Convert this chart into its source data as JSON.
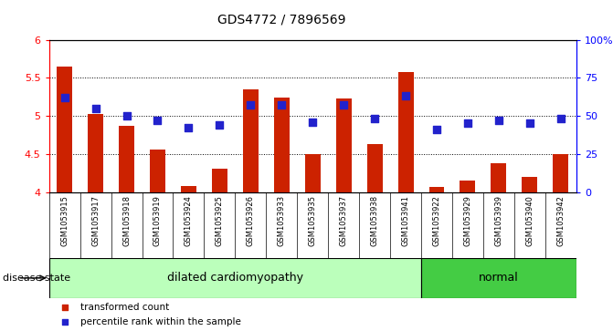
{
  "title": "GDS4772 / 7896569",
  "samples": [
    "GSM1053915",
    "GSM1053917",
    "GSM1053918",
    "GSM1053919",
    "GSM1053924",
    "GSM1053925",
    "GSM1053926",
    "GSM1053933",
    "GSM1053935",
    "GSM1053937",
    "GSM1053938",
    "GSM1053941",
    "GSM1053922",
    "GSM1053929",
    "GSM1053939",
    "GSM1053940",
    "GSM1053942"
  ],
  "bar_values": [
    5.65,
    5.02,
    4.87,
    4.56,
    4.08,
    4.3,
    5.35,
    5.24,
    4.5,
    5.23,
    4.63,
    5.57,
    4.07,
    4.15,
    4.38,
    4.2,
    4.5
  ],
  "dot_values": [
    62,
    55,
    50,
    47,
    42,
    44,
    57,
    57,
    46,
    57,
    48,
    63,
    41,
    45,
    47,
    45,
    48
  ],
  "bar_color": "#cc2200",
  "dot_color": "#2222cc",
  "ylim_left": [
    4.0,
    6.0
  ],
  "ylim_right": [
    0,
    100
  ],
  "yticks_left": [
    4.0,
    4.5,
    5.0,
    5.5,
    6.0
  ],
  "ytick_labels_left": [
    "4",
    "4.5",
    "5",
    "5.5",
    "6"
  ],
  "yticks_right": [
    0,
    25,
    50,
    75,
    100
  ],
  "ytick_labels_right": [
    "0",
    "25",
    "50",
    "75",
    "100%"
  ],
  "hlines": [
    4.5,
    5.0,
    5.5
  ],
  "groups": [
    {
      "label": "dilated cardiomyopathy",
      "start": 0,
      "end": 11,
      "color": "#bbffbb"
    },
    {
      "label": "normal",
      "start": 12,
      "end": 16,
      "color": "#44cc44"
    }
  ],
  "disease_state_label": "disease state",
  "legend_items": [
    {
      "label": "transformed count",
      "color": "#cc2200"
    },
    {
      "label": "percentile rank within the sample",
      "color": "#2222cc"
    }
  ],
  "bar_width": 0.5,
  "dot_size": 28,
  "xtick_bg_color": "#cccccc",
  "group_bg_color": "#cccccc"
}
